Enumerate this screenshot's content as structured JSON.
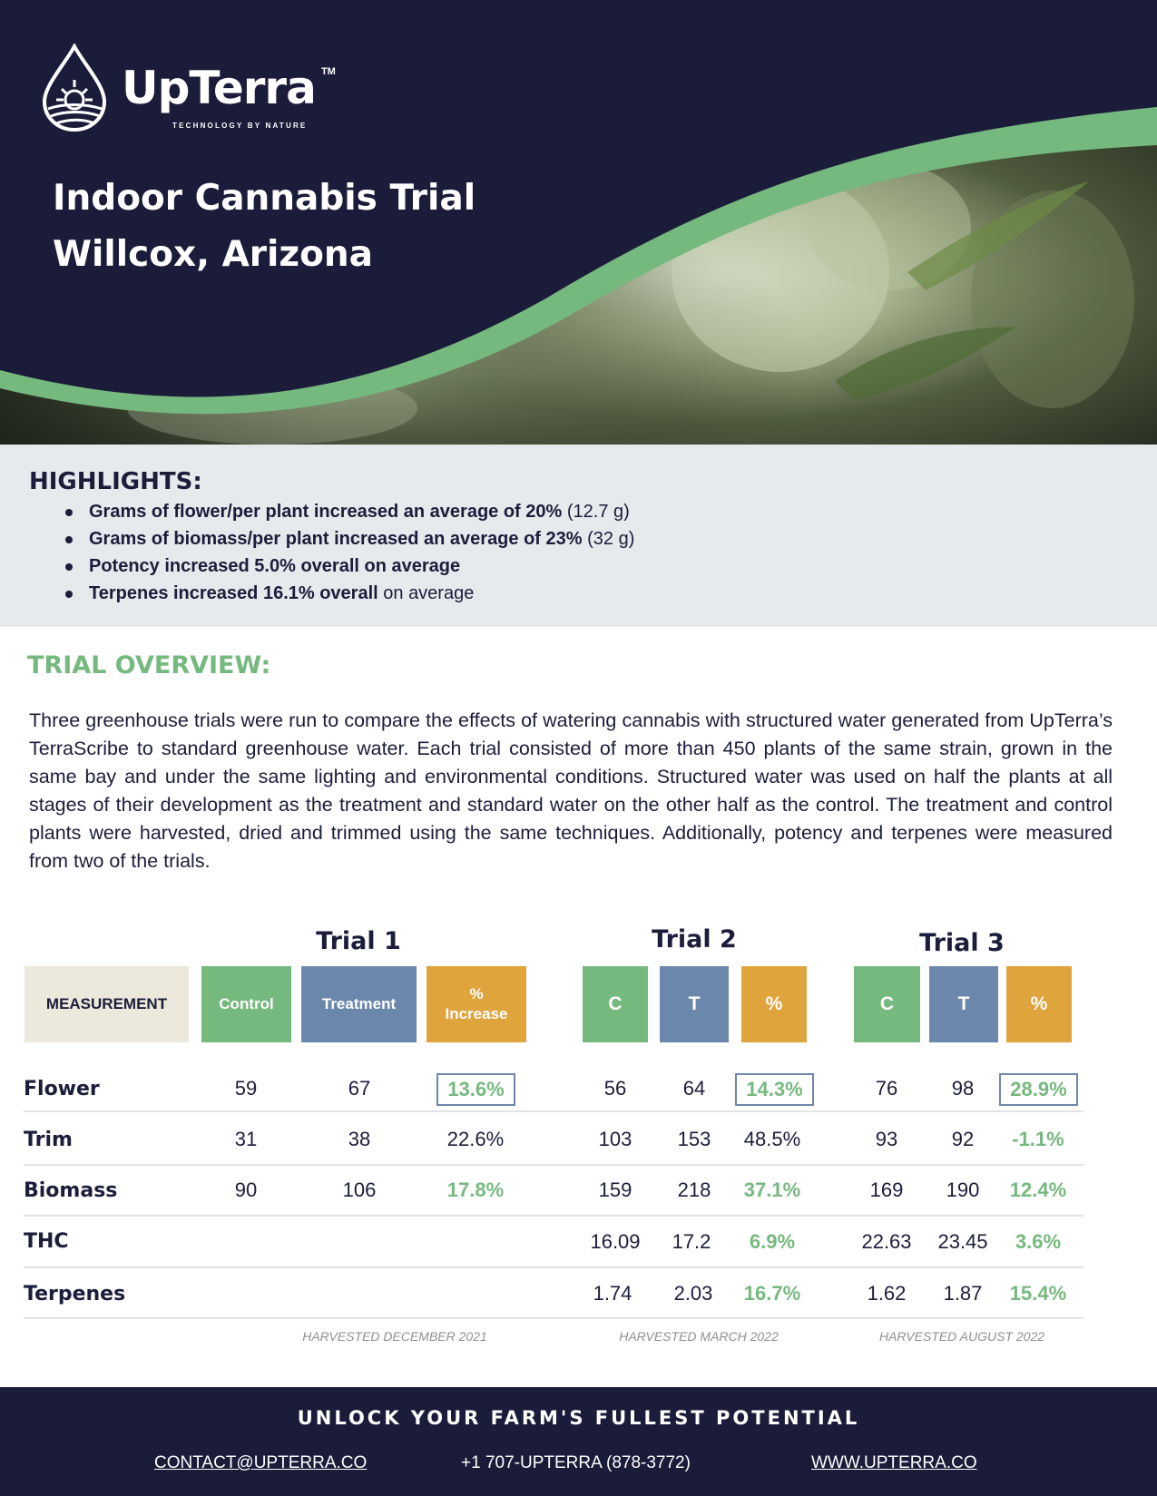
{
  "header": {
    "logo_name": "UpTerra",
    "logo_tm": "TM",
    "logo_tagline": "TECHNOLOGY BY NATURE",
    "title_line1": "Indoor Cannabis Trial",
    "title_line2": "Willcox, Arizona"
  },
  "colors": {
    "navy": "#1b1c3a",
    "green": "#76b97f",
    "blue": "#6b87ab",
    "orange": "#dfa43c",
    "beige": "#ece8dc",
    "highlight_bg": "#e6eaed"
  },
  "highlights": {
    "title": "HIGHLIGHTS:",
    "items": [
      {
        "bold": "Grams of flower/per plant increased an average of 20%",
        "rest": " (12.7 g)"
      },
      {
        "bold": "Grams of biomass/per plant increased an average of 23%",
        "rest": " (32 g)"
      },
      {
        "bold": "Potency increased 5.0% overall on average",
        "rest": ""
      },
      {
        "bold": "Terpenes increased 16.1% overall",
        "rest": " on average"
      }
    ]
  },
  "overview": {
    "title": "TRIAL OVERVIEW:",
    "text": "Three greenhouse trials were run to compare the effects of watering cannabis with structured water generated from UpTerra’s TerraScribe to standard greenhouse water.  Each trial consisted of more than 450 plants of the same strain, grown in the same bay and under the same lighting and environmental conditions.  Structured water was used on half the plants at all stages of their development as the treatment and standard water on the other half as the control.  The treatment and control plants were harvested, dried and trimmed using the same techniques.  Additionally, potency and terpenes were measured from two of the trials."
  },
  "table": {
    "measurement_header": "MEASUREMENT",
    "trials": [
      {
        "title": "Trial 1",
        "headers": [
          "Control",
          "Treatment",
          "% Increase"
        ],
        "harvested": "HARVESTED DECEMBER 2021"
      },
      {
        "title": "Trial 2",
        "headers": [
          "C",
          "T",
          "%"
        ],
        "harvested": "HARVESTED MARCH  2022"
      },
      {
        "title": "Trial 3",
        "headers": [
          "C",
          "T",
          "%"
        ],
        "harvested": "HARVESTED AUGUST 2022"
      }
    ],
    "rows": [
      {
        "label": "Flower",
        "t1": [
          "59",
          "67",
          "13.6%"
        ],
        "t2": [
          "56",
          "64",
          "14.3%"
        ],
        "t3": [
          "76",
          "98",
          "28.9%"
        ]
      },
      {
        "label": "Trim",
        "t1": [
          "31",
          "38",
          "22.6%"
        ],
        "t2": [
          "103",
          "153",
          "48.5%"
        ],
        "t3": [
          "93",
          "92",
          "-1.1%"
        ]
      },
      {
        "label": "Biomass",
        "t1": [
          "90",
          "106",
          "17.8%"
        ],
        "t2": [
          "159",
          "218",
          "37.1%"
        ],
        "t3": [
          "169",
          "190",
          "12.4%"
        ]
      },
      {
        "label": "THC",
        "t1": [
          "",
          "",
          ""
        ],
        "t2": [
          "16.09",
          "17.2",
          "6.9%"
        ],
        "t3": [
          "22.63",
          "23.45",
          "3.6%"
        ]
      },
      {
        "label": "Terpenes",
        "t1": [
          "",
          "",
          ""
        ],
        "t2": [
          "1.74",
          "2.03",
          "16.7%"
        ],
        "t3": [
          "1.62",
          "1.87",
          "15.4%"
        ]
      }
    ]
  },
  "footer": {
    "title": "UNLOCK YOUR FARM'S FULLEST POTENTIAL",
    "email": "CONTACT@UPTERRA.CO",
    "phone": "+1 707-UPTERRA (878-3772)",
    "website": "WWW.UPTERRA.CO"
  }
}
